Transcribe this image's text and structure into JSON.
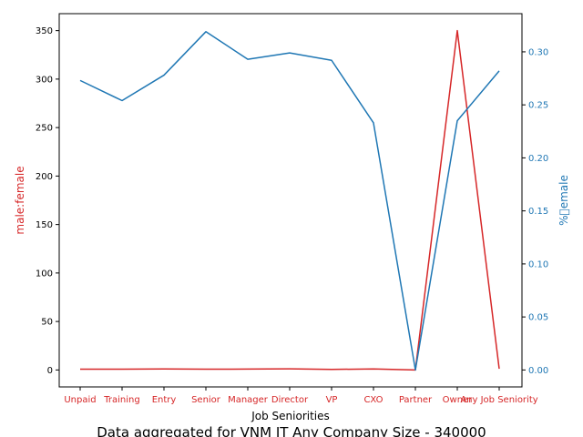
{
  "chart_data": {
    "type": "line",
    "title": "Data aggregated for VNM IT Any Company Size - 340000",
    "xlabel": "Job Seniorities",
    "categories": [
      "Unpaid",
      "Training",
      "Entry",
      "Senior",
      "Manager",
      "Director",
      "VP",
      "CXO",
      "Partner",
      "Owner",
      "Any Job Seniority"
    ],
    "left_axis": {
      "label": "male:female",
      "color": "#d62728",
      "ylim": [
        -17.5,
        367.5
      ],
      "ticks": [
        0,
        50,
        100,
        150,
        200,
        250,
        300,
        350
      ]
    },
    "right_axis": {
      "label": "%\u0000emale",
      "color": "#1f77b4",
      "ylim": [
        -0.016,
        0.336
      ],
      "ticks": [
        "0.00",
        "0.05",
        "0.10",
        "0.15",
        "0.20",
        "0.25",
        "0.30"
      ]
    },
    "series": [
      {
        "axis": "left",
        "color": "#d62728",
        "values": [
          0.8,
          0.8,
          1.0,
          0.8,
          0.9,
          1.2,
          0.6,
          1.0,
          0.0,
          350.0,
          1.2
        ]
      },
      {
        "axis": "right",
        "color": "#1f77b4",
        "values": [
          0.273,
          0.254,
          0.278,
          0.319,
          0.293,
          0.299,
          0.292,
          0.233,
          0.0,
          0.235,
          0.282
        ]
      }
    ]
  }
}
